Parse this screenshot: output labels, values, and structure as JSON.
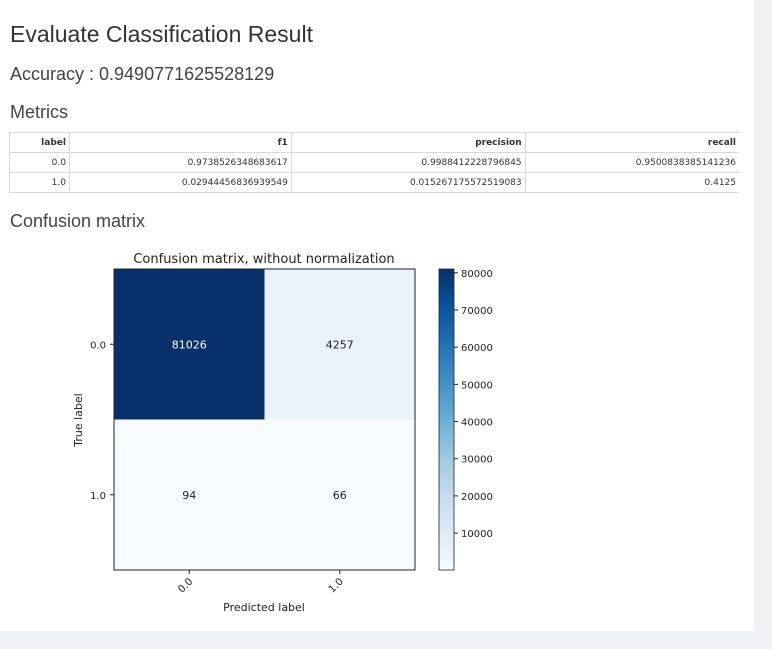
{
  "page": {
    "title": "Evaluate Classification Result",
    "accuracy": "Accuracy : 0.9490771625528129",
    "metrics_heading": "Metrics",
    "confusion_heading": "Confusion matrix"
  },
  "metrics_table": {
    "columns": [
      "label",
      "f1",
      "precision",
      "recall"
    ],
    "rows": [
      [
        "0.0",
        "0.9738526348683617",
        "0.9988412228796845",
        "0.9500838385141236"
      ],
      [
        "1.0",
        "0.029444568369395 49",
        "0.015267175572519083",
        "0.4125"
      ]
    ]
  },
  "chart_data": {
    "type": "heatmap",
    "title": "Confusion matrix, without normalization",
    "xlabel": "Predicted label",
    "ylabel": "True label",
    "x_categories": [
      "0.0",
      "1.0"
    ],
    "y_categories": [
      "0.0",
      "1.0"
    ],
    "values": [
      [
        81026,
        4257
      ],
      [
        94,
        66
      ]
    ],
    "colormap": "Blues",
    "colorbar": {
      "ticks": [
        "80000",
        "70000",
        "60000",
        "50000",
        "40000",
        "30000",
        "20000",
        "10000"
      ]
    },
    "colors": {
      "max": "#08306b",
      "mid": "#eaf3fb",
      "min": "#f7fbff"
    }
  }
}
